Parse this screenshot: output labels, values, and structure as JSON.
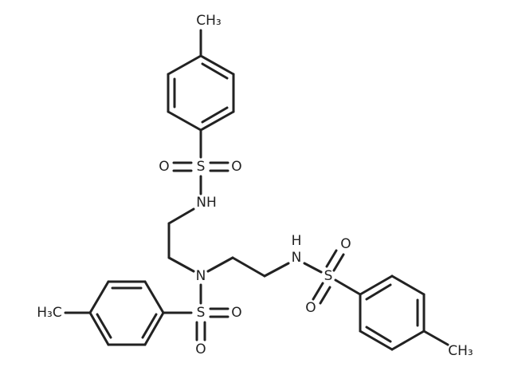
{
  "atoms": [
    {
      "label": "CH₃"
    },
    {
      "label": "O"
    },
    {
      "label": "S"
    },
    {
      "label": "O"
    },
    {
      "label": "NH"
    },
    {
      "label": "N"
    },
    {
      "label": "H"
    },
    {
      "label": "N"
    },
    {
      "label": "S"
    },
    {
      "label": "O"
    },
    {
      "label": "O"
    },
    {
      "label": "CH₃"
    },
    {
      "label": "S"
    },
    {
      "label": "O"
    },
    {
      "label": "O"
    },
    {
      "label": "H₃C"
    }
  ]
}
